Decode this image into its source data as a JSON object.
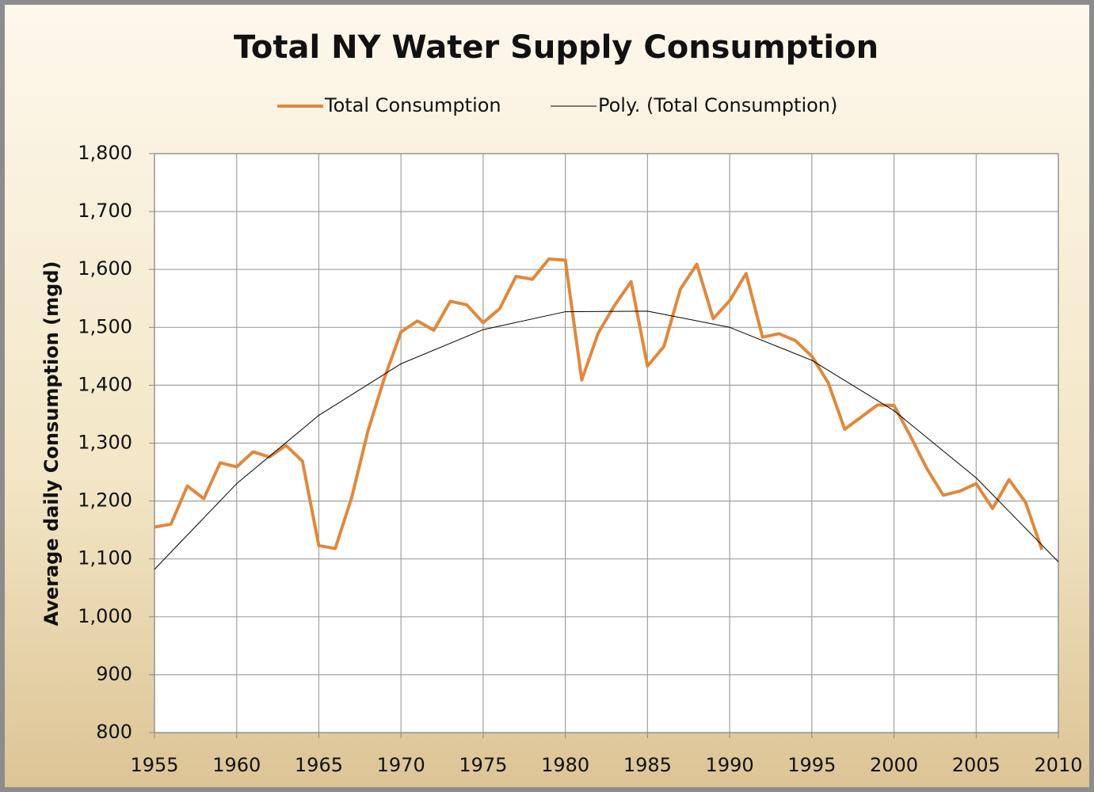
{
  "chart_data": {
    "type": "line",
    "title": "Total NY Water Supply Consumption",
    "ylabel": "Average daily Consumption (mgd)",
    "xlim": [
      1955,
      2010
    ],
    "xticks": [
      1955,
      1960,
      1965,
      1970,
      1975,
      1980,
      1985,
      1990,
      1995,
      2000,
      2005,
      2010
    ],
    "ylim": [
      800,
      1800
    ],
    "yticks": [
      800,
      900,
      {
        "value": 1000,
        "label": "1,000"
      },
      {
        "value": 1100,
        "label": "1,100"
      },
      {
        "value": 1200,
        "label": "1,200"
      },
      {
        "value": 1300,
        "label": "1,300"
      },
      {
        "value": 1400,
        "label": "1,400"
      },
      {
        "value": 1500,
        "label": "1,500"
      },
      {
        "value": 1600,
        "label": "1,600"
      },
      {
        "value": 1700,
        "label": "1,700"
      },
      {
        "value": 1800,
        "label": "1,800"
      }
    ],
    "grid": true,
    "legend": "top",
    "series": [
      {
        "name": "Total Consumption",
        "color": "#e0883c",
        "width": 4,
        "x": [
          1955,
          1956,
          1957,
          1958,
          1959,
          1960,
          1961,
          1962,
          1963,
          1964,
          1965,
          1966,
          1967,
          1968,
          1969,
          1970,
          1971,
          1972,
          1973,
          1974,
          1975,
          1976,
          1977,
          1978,
          1979,
          1980,
          1981,
          1982,
          1983,
          1984,
          1985,
          1986,
          1987,
          1988,
          1989,
          1990,
          1991,
          1992,
          1993,
          1994,
          1995,
          1996,
          1997,
          1998,
          1999,
          2000,
          2001,
          2002,
          2003,
          2004,
          2005,
          2006,
          2007,
          2008,
          2009
        ],
        "values": [
          1155,
          1160,
          1226,
          1204,
          1266,
          1259,
          1285,
          1276,
          1296,
          1269,
          1123,
          1118,
          1206,
          1322,
          1413,
          1492,
          1511,
          1495,
          1545,
          1539,
          1508,
          1532,
          1588,
          1583,
          1618,
          1616,
          1409,
          1490,
          1538,
          1579,
          1433,
          1467,
          1566,
          1609,
          1515,
          1546,
          1593,
          1483,
          1489,
          1477,
          1450,
          1404,
          1324,
          1345,
          1366,
          1365,
          1312,
          1256,
          1210,
          1217,
          1230,
          1187,
          1237,
          1198,
          1116
        ]
      },
      {
        "name": "Poly. (Total Consumption)",
        "color": "#000000",
        "width": 1,
        "x": [
          1955,
          1960,
          1965,
          1970,
          1975,
          1980,
          1985,
          1990,
          1995,
          2000,
          2005,
          2010
        ],
        "values": [
          1082,
          1230,
          1348,
          1437,
          1496,
          1527,
          1528,
          1500,
          1443,
          1356,
          1240,
          1095
        ]
      }
    ]
  }
}
